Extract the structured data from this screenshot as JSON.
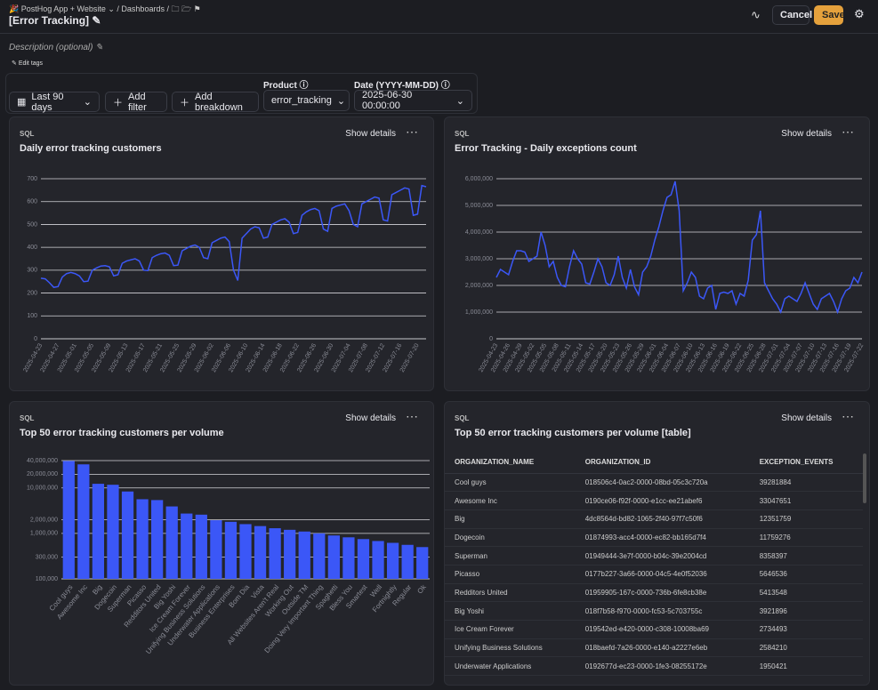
{
  "header": {
    "breadcrumbs": [
      "PostHog App + Website",
      "Dashboards"
    ],
    "title": "[Error Tracking]",
    "cancel": "Cancel",
    "save": "Save",
    "description": "Description (optional)",
    "edit_tags": "Edit tags"
  },
  "filters": {
    "date_range": "Last 90 days",
    "add_filter": "Add filter",
    "add_breakdown": "Add breakdown",
    "variables": [
      {
        "label": "Product",
        "value": "error_tracking"
      },
      {
        "label": "Date (YYYY-MM-DD)",
        "value": "2025-06-30 00:00:00"
      }
    ]
  },
  "panels": [
    {
      "tag": "SQL",
      "details": "Show details",
      "chart_data": {
        "type": "line",
        "title": "Daily error tracking customers",
        "color": "#3b57f7",
        "grid": true,
        "categories": [
          "2025-04-23",
          null,
          null,
          null,
          "2025-04-27",
          null,
          null,
          null,
          "2025-05-01",
          null,
          null,
          null,
          "2025-05-05",
          null,
          null,
          null,
          "2025-05-09",
          null,
          null,
          null,
          "2025-05-13",
          null,
          null,
          null,
          "2025-05-17",
          null,
          null,
          null,
          "2025-05-21",
          null,
          null,
          null,
          "2025-05-25",
          null,
          null,
          null,
          "2025-05-29",
          null,
          null,
          null,
          "2025-06-02",
          null,
          null,
          null,
          "2025-06-06",
          null,
          null,
          null,
          "2025-06-10",
          null,
          null,
          null,
          "2025-06-14",
          null,
          null,
          null,
          "2025-06-18",
          null,
          null,
          null,
          "2025-06-22",
          null,
          null,
          null,
          "2025-06-26",
          null,
          null,
          null,
          "2025-06-30",
          null,
          null,
          null,
          "2025-07-04",
          null,
          null,
          null,
          "2025-07-08",
          null,
          null,
          null,
          "2025-07-12",
          null,
          null,
          null,
          "2025-07-16",
          null,
          null,
          null,
          "2025-07-20",
          null,
          null
        ],
        "values": [
          265,
          262,
          245,
          225,
          228,
          270,
          285,
          290,
          285,
          275,
          250,
          252,
          300,
          310,
          318,
          320,
          315,
          275,
          280,
          330,
          340,
          345,
          350,
          340,
          300,
          298,
          355,
          365,
          372,
          375,
          365,
          320,
          322,
          385,
          395,
          405,
          410,
          400,
          355,
          350,
          420,
          430,
          440,
          445,
          425,
          300,
          255,
          440,
          460,
          480,
          490,
          485,
          440,
          445,
          500,
          510,
          520,
          525,
          510,
          460,
          465,
          540,
          555,
          565,
          570,
          560,
          480,
          470,
          570,
          580,
          585,
          590,
          560,
          500,
          490,
          590,
          600,
          610,
          620,
          615,
          520,
          515,
          630,
          640,
          650,
          660,
          655,
          540,
          545,
          670,
          665
        ],
        "ylim": [
          0,
          700
        ],
        "yticks": [
          0,
          100,
          200,
          300,
          400,
          500,
          600,
          700
        ]
      }
    },
    {
      "tag": "SQL",
      "details": "Show details",
      "chart_data": {
        "type": "line",
        "title": "Error Tracking - Daily exceptions count",
        "color": "#3b57f7",
        "grid": true,
        "categories": [
          "2025-04-23",
          null,
          null,
          "2025-04-26",
          null,
          null,
          "2025-04-29",
          null,
          null,
          "2025-05-02",
          null,
          null,
          "2025-05-05",
          null,
          null,
          "2025-05-08",
          null,
          null,
          "2025-05-11",
          null,
          null,
          "2025-05-14",
          null,
          null,
          "2025-05-17",
          null,
          null,
          "2025-05-20",
          null,
          null,
          "2025-05-23",
          null,
          null,
          "2025-05-26",
          null,
          null,
          "2025-05-29",
          null,
          null,
          "2025-06-01",
          null,
          null,
          "2025-06-04",
          null,
          null,
          "2025-06-07",
          null,
          null,
          "2025-06-10",
          null,
          null,
          "2025-06-13",
          null,
          null,
          "2025-06-16",
          null,
          null,
          "2025-06-19",
          null,
          null,
          "2025-06-22",
          null,
          null,
          "2025-06-25",
          null,
          null,
          "2025-06-28",
          null,
          null,
          "2025-07-01",
          null,
          null,
          "2025-07-04",
          null,
          null,
          "2025-07-07",
          null,
          null,
          "2025-07-10",
          null,
          null,
          "2025-07-13",
          null,
          null,
          "2025-07-16",
          null,
          null,
          "2025-07-19",
          null,
          null,
          "2025-07-22"
        ],
        "values": [
          2300000,
          2600000,
          2500000,
          2400000,
          2900000,
          3300000,
          3300000,
          3250000,
          2900000,
          3000000,
          3100000,
          4000000,
          3500000,
          2700000,
          2900000,
          2300000,
          2000000,
          1950000,
          2700000,
          3300000,
          3000000,
          2800000,
          2100000,
          2050000,
          2500000,
          3000000,
          2700000,
          2100000,
          2000000,
          2400000,
          3100000,
          2300000,
          1900000,
          2600000,
          1950000,
          1650000,
          2500000,
          2700000,
          3100000,
          3700000,
          4200000,
          4800000,
          5300000,
          5400000,
          5900000,
          4800000,
          1800000,
          2100000,
          2500000,
          2300000,
          1600000,
          1500000,
          1900000,
          2000000,
          1100000,
          1700000,
          1750000,
          1700000,
          1800000,
          1300000,
          1700000,
          1600000,
          2200000,
          3700000,
          3900000,
          4800000,
          2100000,
          1800000,
          1500000,
          1300000,
          1000000,
          1500000,
          1600000,
          1500000,
          1400000,
          1700000,
          2100000,
          1700000,
          1300000,
          1100000,
          1500000,
          1600000,
          1700000,
          1400000,
          1000000,
          1500000,
          1800000,
          1900000,
          2300000,
          2100000,
          2500000
        ],
        "ylim": [
          0,
          6000000
        ],
        "yticks": [
          0,
          {
            "value": 1000000,
            "label": "1,000,000"
          },
          {
            "value": 2000000,
            "label": "2,000,000"
          },
          {
            "value": 3000000,
            "label": "3,000,000"
          },
          {
            "value": 4000000,
            "label": "4,000,000"
          },
          {
            "value": 5000000,
            "label": "5,000,000"
          },
          {
            "value": 6000000,
            "label": "6,000,000"
          }
        ]
      }
    },
    {
      "tag": "SQL",
      "details": "Show details",
      "chart_data": {
        "type": "bar",
        "title": "Top 50 error tracking customers per volume",
        "color": "#3b57f7",
        "grid": true,
        "log": true,
        "categories": [
          "Cool guys",
          "Awesome Inc",
          "Big",
          "Dogecoin",
          "Superman",
          "Picasso",
          "Redditors United",
          "Big Yoshi",
          "Ice Cream Forever",
          "Unifying Business Solutions",
          "Underwater Applications",
          "Business Enterprises",
          "Bom Dia",
          "Vista",
          "All Websites Aren't Real",
          "Working Out",
          "Outside TM",
          "Doing Very Important Thing",
          "Spaghetti",
          "Bless You",
          "Smartest",
          "Well",
          "Fortnightly",
          "Regular",
          "Ok"
        ],
        "values": [
          39281884,
          33047651,
          12351759,
          11759276,
          8358397,
          5646536,
          5413548,
          3921896,
          2734493,
          2584210,
          1950421,
          1800000,
          1600000,
          1450000,
          1300000,
          1200000,
          1100000,
          1000000,
          900000,
          820000,
          750000,
          680000,
          620000,
          560000,
          500000
        ],
        "ylim": [
          100000,
          40000000
        ],
        "yticks": [
          {
            "value": 100000,
            "label": "100,000"
          },
          {
            "value": 300000,
            "label": "300,000"
          },
          {
            "value": 1000000,
            "label": "1,000,000"
          },
          {
            "value": 2000000,
            "label": "2,000,000"
          },
          {
            "value": 10000000,
            "label": "10,000,000"
          },
          {
            "value": 20000000,
            "label": "20,000,000"
          },
          {
            "value": 40000000,
            "label": "40,000,000"
          }
        ]
      }
    },
    {
      "tag": "SQL",
      "details": "Show details",
      "title": "Top 50 error tracking customers per volume [table]",
      "table": {
        "columns": [
          "ORGANIZATION_NAME",
          "ORGANIZATION_ID",
          "EXCEPTION_EVENTS"
        ],
        "rows": [
          [
            "Cool guys",
            "018506c4-0ac2-0000-08bd-05c3c720a",
            39281884
          ],
          [
            "Awesome Inc",
            "0190ce06-f92f-0000-e1cc-ee21abef6",
            33047651
          ],
          [
            "Big",
            "4dc8564d-bd82-1065-2f40-97f7c50f6",
            12351759
          ],
          [
            "Dogecoin",
            "01874993-acc4-0000-ec82-bb165d7f4",
            11759276
          ],
          [
            "Superman",
            "01949444-3e7f-0000-b04c-39e2004cd",
            8358397
          ],
          [
            "Picasso",
            "0177b227-3a66-0000-04c5-4e0f52036",
            5646536
          ],
          [
            "Redditors United",
            "01959905-167c-0000-736b-6fe8cb38e",
            5413548
          ],
          [
            "Big Yoshi",
            "018f7b58-f970-0000-fc53-5c703755c",
            3921896
          ],
          [
            "Ice Cream Forever",
            "019542ed-e420-0000-c308-10008ba69",
            2734493
          ],
          [
            "Unifying Business Solutions",
            "018baefd-7a26-0000-e140-a2227e6eb",
            2584210
          ],
          [
            "Underwater Applications",
            "0192677d-ec23-0000-1fe3-08255172e",
            1950421
          ]
        ]
      }
    }
  ]
}
